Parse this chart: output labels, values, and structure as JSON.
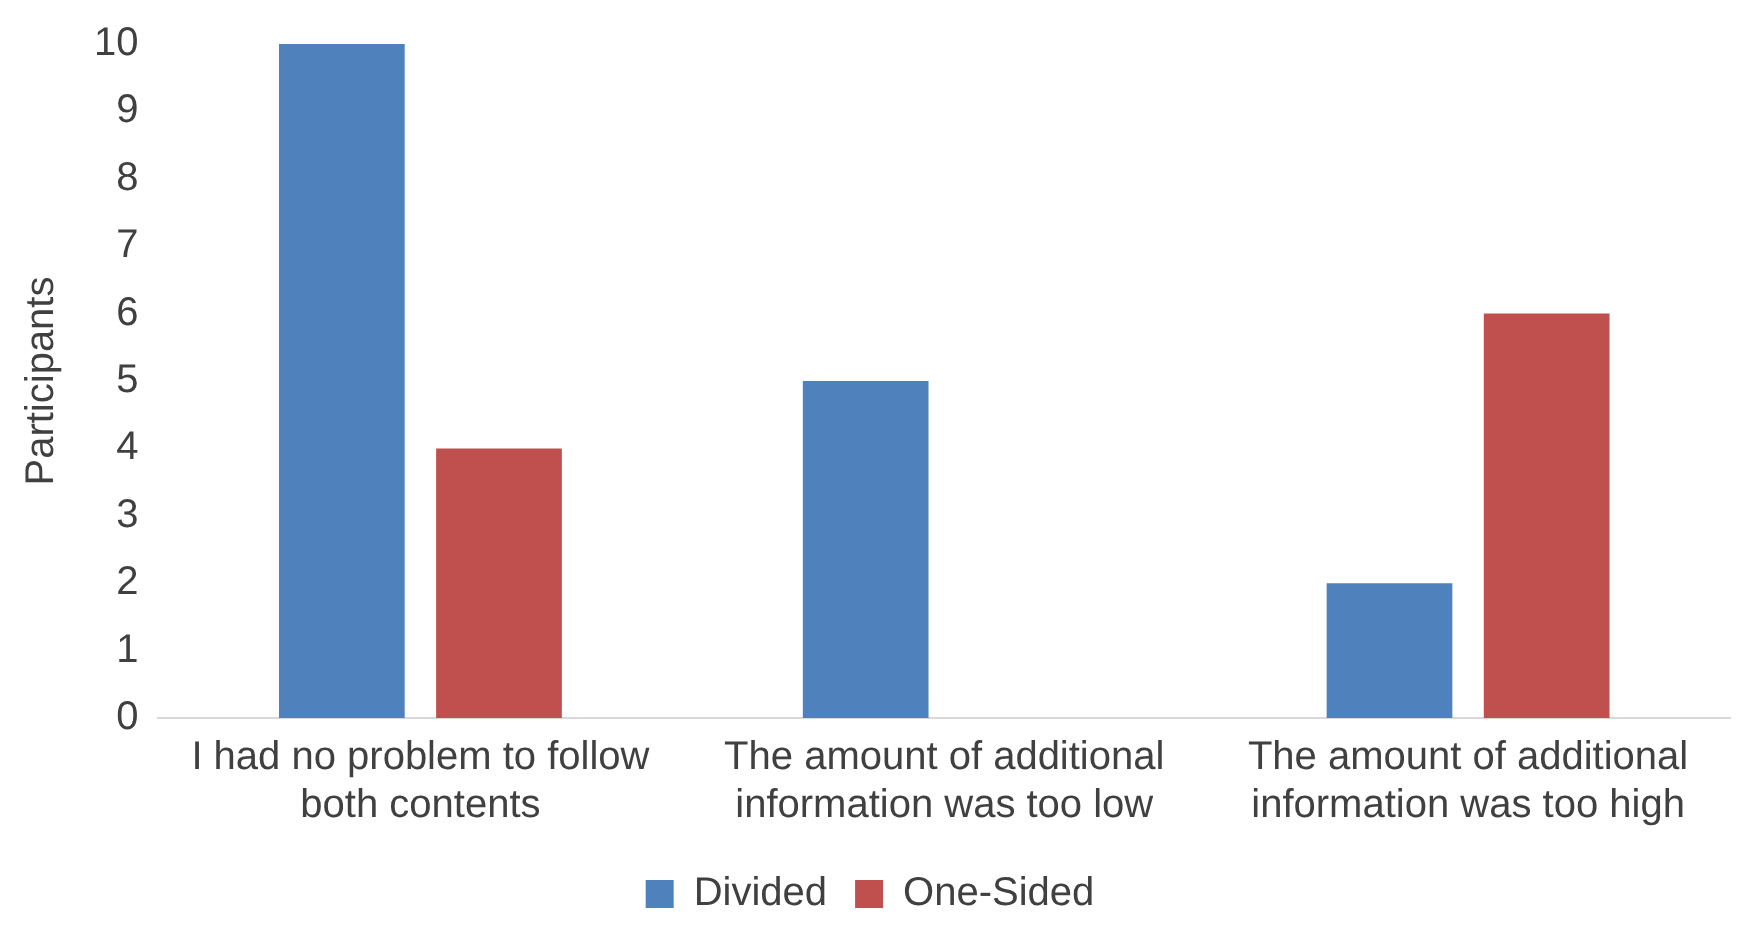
{
  "chart_data": {
    "type": "bar",
    "ylabel": "Participants",
    "categories": [
      "I had no problem to follow both contents",
      "The amount of additional information was too low",
      "The amount of additional information was too high"
    ],
    "series": [
      {
        "name": "Divided",
        "color": "#4f81bd",
        "values": [
          10,
          5,
          2
        ]
      },
      {
        "name": "One-Sided",
        "color": "#c0504d",
        "values": [
          4,
          0,
          6
        ]
      }
    ],
    "ylim": [
      0,
      10
    ],
    "yticks": [
      0,
      1,
      2,
      3,
      4,
      5,
      6,
      7,
      8,
      9,
      10
    ],
    "grid": false,
    "legend": "bottom"
  }
}
